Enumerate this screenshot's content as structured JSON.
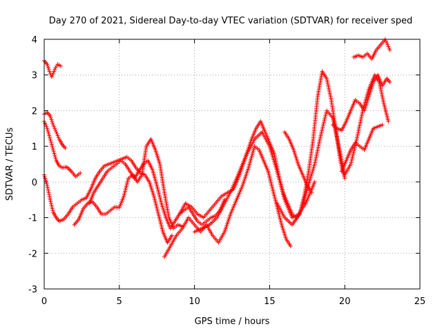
{
  "chart_data": {
    "type": "scatter",
    "title": "Day 270 of 2021, Sidereal Day-to-day VTEC variation (SDTVAR) for receiver sped",
    "xlabel": "GPS time / hours",
    "ylabel": "SDTVAR / TECUs",
    "xlim": [
      0,
      25
    ],
    "ylim": [
      -3,
      4
    ],
    "xticks": [
      "0",
      "5",
      "10",
      "15",
      "20",
      "25"
    ],
    "yticks": [
      "-3",
      "-2",
      "-1",
      "0",
      "1",
      "2",
      "3",
      "4"
    ],
    "grid": true,
    "legend": "none",
    "marker": "+",
    "color": "#ff0000",
    "series": [
      {
        "x": [
          0.0,
          0.2,
          0.35,
          0.5,
          0.6,
          0.75,
          0.9,
          1.1
        ],
        "y": [
          3.4,
          3.3,
          3.1,
          2.95,
          3.05,
          3.2,
          3.3,
          3.25
        ]
      },
      {
        "x": [
          0.0,
          0.2,
          0.4,
          0.6,
          0.8,
          1.0,
          1.2,
          1.4
        ],
        "y": [
          1.9,
          1.95,
          1.85,
          1.6,
          1.4,
          1.2,
          1.05,
          0.95
        ]
      },
      {
        "x": [
          0.0,
          0.2,
          0.4,
          0.6,
          0.8,
          1.0,
          1.2,
          1.5,
          1.8,
          2.1,
          2.4
        ],
        "y": [
          1.7,
          1.5,
          1.2,
          0.9,
          0.6,
          0.45,
          0.4,
          0.42,
          0.3,
          0.15,
          0.25
        ]
      },
      {
        "x": [
          0.0,
          0.2,
          0.4,
          0.6,
          0.8,
          1.0,
          1.3,
          1.6,
          1.9,
          2.2,
          2.5,
          2.8,
          3.1,
          3.4,
          3.7,
          4.0,
          4.3,
          4.6,
          4.9,
          5.2,
          5.5,
          5.8,
          6.1,
          6.4,
          6.7,
          7.0,
          7.3,
          7.6,
          7.9,
          8.2,
          8.5
        ],
        "y": [
          0.2,
          -0.1,
          -0.5,
          -0.85,
          -1.0,
          -1.1,
          -1.05,
          -0.9,
          -0.7,
          -0.6,
          -0.5,
          -0.45,
          -0.2,
          0.1,
          0.3,
          0.45,
          0.5,
          0.55,
          0.6,
          0.65,
          0.7,
          0.6,
          0.4,
          0.25,
          0.2,
          0.0,
          -0.4,
          -0.9,
          -1.4,
          -1.7,
          -1.5
        ]
      },
      {
        "x": [
          2.0,
          2.3,
          2.6,
          2.9,
          3.2,
          3.5,
          3.8,
          4.1,
          4.4,
          4.7,
          5.0,
          5.3,
          5.6,
          5.9,
          6.2,
          6.5,
          6.8,
          7.1,
          7.4,
          7.7,
          8.0,
          8.3,
          8.6,
          8.9,
          9.2
        ],
        "y": [
          -1.2,
          -1.05,
          -0.75,
          -0.6,
          -0.55,
          -0.7,
          -0.9,
          -0.9,
          -0.8,
          -0.7,
          -0.72,
          -0.4,
          0.1,
          0.2,
          0.0,
          0.2,
          1.0,
          1.2,
          0.9,
          0.5,
          -0.3,
          -1.0,
          -1.3,
          -1.2,
          -1.25
        ]
      },
      {
        "x": [
          3.0,
          3.3,
          3.6,
          3.9,
          4.2,
          4.5,
          4.8,
          5.1,
          5.4,
          5.7,
          6.0,
          6.3,
          6.6,
          6.9,
          7.2,
          7.5,
          7.8,
          8.1,
          8.4,
          8.7,
          9.0,
          9.3,
          9.6,
          9.9,
          10.2,
          10.5,
          10.8,
          11.1,
          11.4,
          11.7,
          12.0
        ],
        "y": [
          -0.6,
          -0.3,
          -0.1,
          0.1,
          0.3,
          0.4,
          0.5,
          0.6,
          0.5,
          0.3,
          0.1,
          0.3,
          0.5,
          0.6,
          0.35,
          -0.1,
          -0.6,
          -1.0,
          -1.3,
          -1.1,
          -0.9,
          -0.8,
          -0.7,
          -0.9,
          -1.1,
          -1.2,
          -1.1,
          -1.0,
          -0.95,
          -0.8,
          -0.5
        ]
      },
      {
        "x": [
          8.0,
          8.4,
          8.8,
          9.2,
          9.6,
          10.0,
          10.4,
          10.8,
          11.2,
          11.6,
          12.0,
          12.4,
          12.8,
          13.2,
          13.6,
          14.0,
          14.3,
          14.6,
          14.9,
          15.2,
          15.5,
          15.8,
          16.1,
          16.4
        ],
        "y": [
          -2.1,
          -1.8,
          -1.5,
          -1.3,
          -1.0,
          -1.2,
          -1.4,
          -1.2,
          -1.5,
          -1.7,
          -1.4,
          -0.9,
          -0.5,
          -0.1,
          0.4,
          1.0,
          0.9,
          0.6,
          0.3,
          -0.2,
          -0.7,
          -1.2,
          -1.6,
          -1.8
        ]
      },
      {
        "x": [
          9.0,
          9.4,
          9.8,
          10.2,
          10.6,
          11.0,
          11.4,
          11.8,
          12.2,
          12.6,
          13.0,
          13.4,
          13.8,
          14.1,
          14.4,
          14.7,
          15.0,
          15.3,
          15.6,
          15.9,
          16.2,
          16.5,
          16.8,
          17.1,
          17.4,
          17.7,
          18.0
        ],
        "y": [
          -0.9,
          -0.6,
          -0.7,
          -0.9,
          -1.0,
          -0.8,
          -0.6,
          -0.4,
          -0.3,
          -0.2,
          0.2,
          0.7,
          1.2,
          1.5,
          1.7,
          1.4,
          1.1,
          0.8,
          0.2,
          -0.3,
          -0.6,
          -0.9,
          -1.0,
          -0.8,
          -0.6,
          -0.3,
          0.0
        ]
      },
      {
        "x": [
          10.0,
          10.5,
          11.0,
          11.5,
          12.0,
          12.5,
          13.0,
          13.5,
          14.0,
          14.5,
          15.0,
          15.5,
          16.0,
          16.5,
          17.0,
          17.3,
          17.6,
          17.9,
          18.2,
          18.5,
          18.8,
          19.1,
          19.4,
          19.7,
          20.0
        ],
        "y": [
          -1.4,
          -1.3,
          -1.2,
          -1.0,
          -0.6,
          -0.2,
          0.3,
          0.8,
          1.2,
          1.4,
          1.0,
          0.3,
          -0.5,
          -1.0,
          -0.9,
          -0.4,
          0.3,
          1.2,
          2.4,
          3.1,
          2.9,
          2.3,
          1.5,
          0.6,
          0.1
        ]
      },
      {
        "x": [
          15.5,
          16.0,
          16.5,
          17.0,
          17.5,
          18.0,
          18.4,
          18.8,
          19.2,
          19.6,
          20.0,
          20.4,
          20.8,
          21.2,
          21.6,
          22.0,
          22.3,
          22.6,
          22.9
        ],
        "y": [
          -0.6,
          -1.0,
          -1.2,
          -0.9,
          -0.2,
          0.5,
          1.3,
          2.0,
          1.8,
          1.0,
          0.2,
          0.5,
          1.2,
          2.0,
          2.6,
          3.0,
          2.8,
          2.2,
          1.7
        ]
      },
      {
        "x": [
          19.2,
          19.5,
          19.8,
          20.1,
          20.4,
          20.7,
          21.0,
          21.3,
          21.6,
          21.9,
          22.2,
          22.5,
          22.8,
          23.0
        ],
        "y": [
          1.6,
          1.5,
          1.45,
          1.7,
          2.0,
          2.3,
          2.2,
          2.0,
          2.4,
          2.8,
          3.0,
          2.7,
          2.9,
          2.8
        ]
      },
      {
        "x": [
          19.8,
          20.1,
          20.4,
          20.7,
          21.0,
          21.3,
          21.6,
          21.9,
          22.2,
          22.5
        ],
        "y": [
          0.3,
          0.6,
          0.9,
          1.1,
          1.0,
          0.9,
          1.2,
          1.5,
          1.55,
          1.6
        ]
      },
      {
        "x": [
          20.6,
          20.9,
          21.2,
          21.5,
          21.8,
          22.1,
          22.4,
          22.7,
          22.9,
          23.0
        ],
        "y": [
          3.5,
          3.55,
          3.5,
          3.6,
          3.45,
          3.7,
          3.85,
          4.0,
          3.8,
          3.7
        ]
      },
      {
        "x": [
          16.0,
          16.3,
          16.6,
          16.9,
          17.2,
          17.5,
          17.8
        ],
        "y": [
          1.4,
          1.2,
          0.9,
          0.5,
          0.2,
          -0.1,
          -0.3
        ]
      }
    ]
  }
}
